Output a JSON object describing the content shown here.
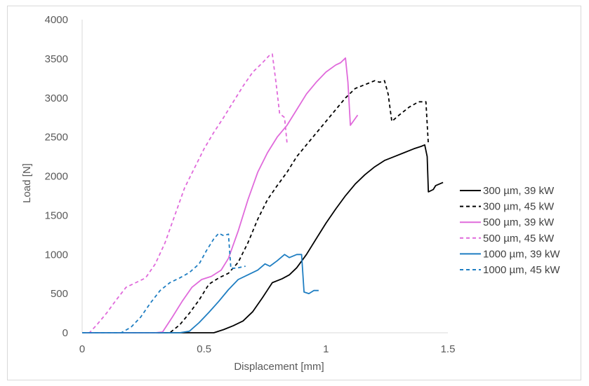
{
  "chart_data": {
    "type": "line",
    "title": "",
    "xlabel": "Displacement [mm]",
    "ylabel": "Load [N]",
    "xlim": [
      0,
      1.5
    ],
    "ylim": [
      0,
      4000
    ],
    "x_ticks": [
      "0",
      "0.5",
      "1",
      "1.5"
    ],
    "x_tick_values": [
      0,
      0.5,
      1,
      1.5
    ],
    "y_ticks": [
      "0",
      "500",
      "1000",
      "1500",
      "2000",
      "2500",
      "3000",
      "3500",
      "4000"
    ],
    "y_tick_values": [
      0,
      500,
      1000,
      1500,
      2000,
      2500,
      3000,
      3500,
      4000
    ],
    "grid": false,
    "legend_position": "right",
    "series": [
      {
        "name": "300 µm, 39 kW",
        "color": "#000000",
        "style": "solid",
        "points": [
          [
            0,
            0
          ],
          [
            0.5,
            0
          ],
          [
            0.54,
            0
          ],
          [
            0.58,
            40
          ],
          [
            0.62,
            90
          ],
          [
            0.66,
            150
          ],
          [
            0.7,
            270
          ],
          [
            0.74,
            450
          ],
          [
            0.78,
            640
          ],
          [
            0.82,
            690
          ],
          [
            0.85,
            740
          ],
          [
            0.88,
            830
          ],
          [
            0.92,
            1000
          ],
          [
            0.96,
            1200
          ],
          [
            1.0,
            1400
          ],
          [
            1.04,
            1580
          ],
          [
            1.08,
            1750
          ],
          [
            1.12,
            1900
          ],
          [
            1.16,
            2020
          ],
          [
            1.2,
            2120
          ],
          [
            1.24,
            2200
          ],
          [
            1.28,
            2250
          ],
          [
            1.32,
            2300
          ],
          [
            1.36,
            2350
          ],
          [
            1.39,
            2380
          ],
          [
            1.405,
            2400
          ],
          [
            1.415,
            2250
          ],
          [
            1.42,
            1800
          ],
          [
            1.44,
            1830
          ],
          [
            1.45,
            1880
          ],
          [
            1.48,
            1920
          ]
        ]
      },
      {
        "name": "300 µm, 45 kW",
        "color": "#000000",
        "style": "dashed",
        "points": [
          [
            0,
            0
          ],
          [
            0.3,
            0
          ],
          [
            0.36,
            0
          ],
          [
            0.4,
            100
          ],
          [
            0.44,
            250
          ],
          [
            0.48,
            420
          ],
          [
            0.52,
            620
          ],
          [
            0.56,
            700
          ],
          [
            0.6,
            760
          ],
          [
            0.64,
            900
          ],
          [
            0.68,
            1150
          ],
          [
            0.72,
            1450
          ],
          [
            0.76,
            1700
          ],
          [
            0.8,
            1880
          ],
          [
            0.84,
            2050
          ],
          [
            0.88,
            2250
          ],
          [
            0.92,
            2400
          ],
          [
            0.96,
            2550
          ],
          [
            1.0,
            2700
          ],
          [
            1.04,
            2850
          ],
          [
            1.08,
            3000
          ],
          [
            1.12,
            3120
          ],
          [
            1.16,
            3170
          ],
          [
            1.2,
            3220
          ],
          [
            1.22,
            3200
          ],
          [
            1.24,
            3220
          ],
          [
            1.255,
            3050
          ],
          [
            1.27,
            2700
          ],
          [
            1.3,
            2780
          ],
          [
            1.34,
            2880
          ],
          [
            1.38,
            2950
          ],
          [
            1.41,
            2950
          ],
          [
            1.42,
            2400
          ]
        ]
      },
      {
        "name": "500 µm, 39 kW",
        "color": "#e06adb",
        "style": "solid",
        "points": [
          [
            0,
            0
          ],
          [
            0.3,
            0
          ],
          [
            0.33,
            10
          ],
          [
            0.37,
            200
          ],
          [
            0.41,
            400
          ],
          [
            0.45,
            580
          ],
          [
            0.49,
            680
          ],
          [
            0.53,
            720
          ],
          [
            0.57,
            800
          ],
          [
            0.6,
            950
          ],
          [
            0.64,
            1300
          ],
          [
            0.68,
            1700
          ],
          [
            0.72,
            2050
          ],
          [
            0.76,
            2300
          ],
          [
            0.8,
            2500
          ],
          [
            0.84,
            2650
          ],
          [
            0.88,
            2850
          ],
          [
            0.92,
            3050
          ],
          [
            0.96,
            3200
          ],
          [
            1.0,
            3330
          ],
          [
            1.04,
            3420
          ],
          [
            1.06,
            3450
          ],
          [
            1.08,
            3510
          ],
          [
            1.09,
            3200
          ],
          [
            1.1,
            2650
          ],
          [
            1.13,
            2780
          ]
        ]
      },
      {
        "name": "500 µm, 45 kW",
        "color": "#e06adb",
        "style": "dashed",
        "points": [
          [
            0,
            0
          ],
          [
            0.03,
            0
          ],
          [
            0.06,
            100
          ],
          [
            0.1,
            250
          ],
          [
            0.14,
            420
          ],
          [
            0.18,
            580
          ],
          [
            0.22,
            640
          ],
          [
            0.26,
            700
          ],
          [
            0.3,
            880
          ],
          [
            0.34,
            1150
          ],
          [
            0.38,
            1500
          ],
          [
            0.42,
            1850
          ],
          [
            0.46,
            2100
          ],
          [
            0.5,
            2350
          ],
          [
            0.54,
            2560
          ],
          [
            0.58,
            2750
          ],
          [
            0.62,
            2950
          ],
          [
            0.66,
            3150
          ],
          [
            0.7,
            3330
          ],
          [
            0.74,
            3450
          ],
          [
            0.77,
            3550
          ],
          [
            0.78,
            3560
          ],
          [
            0.795,
            3200
          ],
          [
            0.81,
            2800
          ],
          [
            0.83,
            2750
          ],
          [
            0.84,
            2430
          ]
        ]
      },
      {
        "name": "1000 µm, 39 kW",
        "color": "#1f7ec2",
        "style": "solid",
        "points": [
          [
            0,
            0
          ],
          [
            0.4,
            0
          ],
          [
            0.44,
            20
          ],
          [
            0.48,
            130
          ],
          [
            0.52,
            260
          ],
          [
            0.56,
            400
          ],
          [
            0.6,
            550
          ],
          [
            0.64,
            680
          ],
          [
            0.68,
            740
          ],
          [
            0.72,
            800
          ],
          [
            0.75,
            880
          ],
          [
            0.77,
            850
          ],
          [
            0.8,
            920
          ],
          [
            0.83,
            1000
          ],
          [
            0.85,
            960
          ],
          [
            0.88,
            1000
          ],
          [
            0.9,
            1000
          ],
          [
            0.91,
            520
          ],
          [
            0.93,
            500
          ],
          [
            0.95,
            540
          ],
          [
            0.97,
            540
          ]
        ]
      },
      {
        "name": "1000 µm, 45 kW",
        "color": "#1f7ec2",
        "style": "dashed",
        "points": [
          [
            0,
            0
          ],
          [
            0.16,
            0
          ],
          [
            0.2,
            70
          ],
          [
            0.24,
            200
          ],
          [
            0.28,
            380
          ],
          [
            0.32,
            540
          ],
          [
            0.36,
            640
          ],
          [
            0.4,
            700
          ],
          [
            0.44,
            770
          ],
          [
            0.48,
            880
          ],
          [
            0.51,
            1050
          ],
          [
            0.54,
            1200
          ],
          [
            0.56,
            1270
          ],
          [
            0.58,
            1240
          ],
          [
            0.6,
            1260
          ],
          [
            0.61,
            820
          ],
          [
            0.64,
            830
          ],
          [
            0.67,
            850
          ]
        ]
      }
    ]
  }
}
